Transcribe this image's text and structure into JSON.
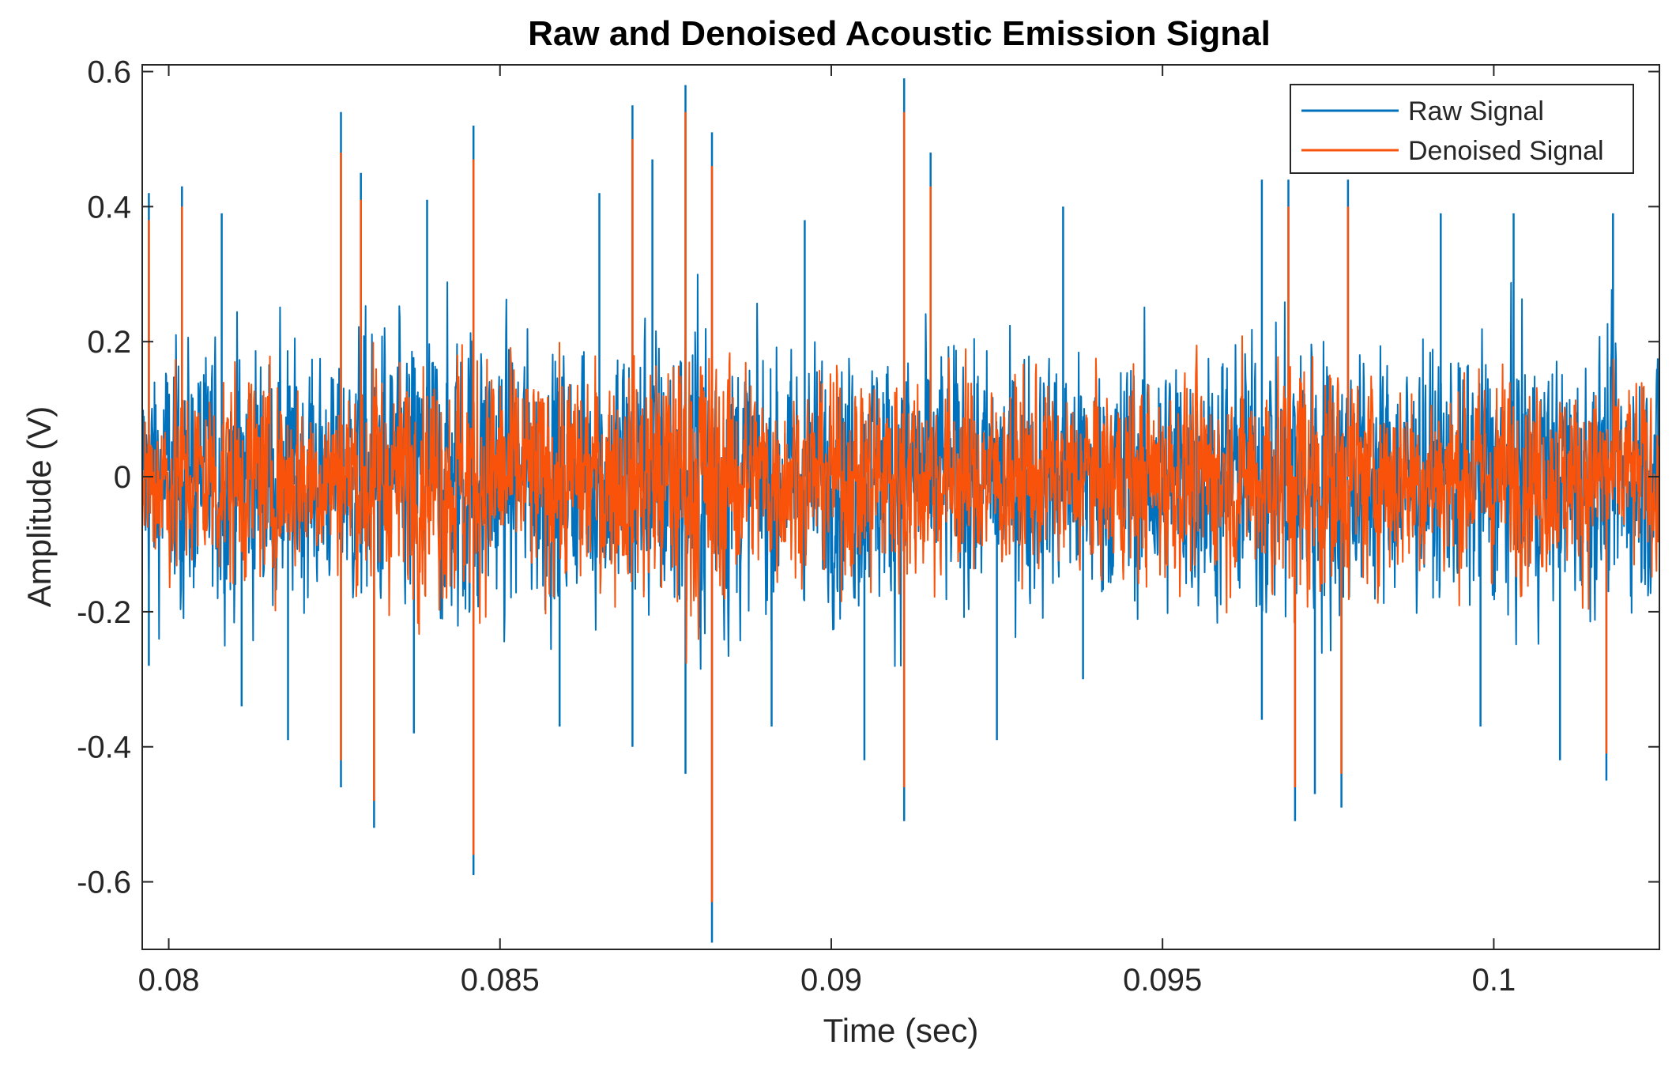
{
  "chart_data": {
    "type": "line",
    "title": "Raw and Denoised Acoustic Emission Signal",
    "xlabel": "Time (sec)",
    "ylabel": "Amplitude (V)",
    "xlim": [
      0.0796,
      0.1025
    ],
    "ylim": [
      -0.7,
      0.61
    ],
    "xticks": [
      0.08,
      0.085,
      0.09,
      0.095,
      0.1
    ],
    "xtick_labels": [
      "0.08",
      "0.085",
      "0.09",
      "0.095",
      "0.1"
    ],
    "yticks": [
      0.6,
      0.4,
      0.2,
      0,
      -0.2,
      -0.4,
      -0.6
    ],
    "ytick_labels": [
      "0.6",
      "0.4",
      "0.2",
      "0",
      "-0.2",
      "-0.4",
      "-0.6"
    ],
    "grid": false,
    "legend_position": "top-right",
    "series": [
      {
        "name": "Raw Signal",
        "color": "#0072BD",
        "envelope": {
          "x": [
            0.0796,
            0.08,
            0.0805,
            0.081,
            0.0815,
            0.082,
            0.0825,
            0.083,
            0.0835,
            0.084,
            0.0845,
            0.085,
            0.0855,
            0.086,
            0.0865,
            0.087,
            0.0875,
            0.088,
            0.0885,
            0.089,
            0.0895,
            0.09,
            0.0905,
            0.091,
            0.0915,
            0.092,
            0.0925,
            0.093,
            0.0935,
            0.094,
            0.0945,
            0.095,
            0.0955,
            0.096,
            0.0965,
            0.097,
            0.0975,
            0.098,
            0.0985,
            0.099,
            0.0995,
            0.1,
            0.1005,
            0.101,
            0.1015,
            0.102,
            0.1025
          ],
          "max": [
            0.22,
            0.28,
            0.27,
            0.3,
            0.28,
            0.26,
            0.23,
            0.32,
            0.3,
            0.31,
            0.35,
            0.3,
            0.29,
            0.28,
            0.29,
            0.32,
            0.33,
            0.38,
            0.31,
            0.27,
            0.25,
            0.27,
            0.28,
            0.3,
            0.28,
            0.27,
            0.26,
            0.27,
            0.25,
            0.26,
            0.27,
            0.28,
            0.27,
            0.27,
            0.29,
            0.36,
            0.31,
            0.28,
            0.27,
            0.26,
            0.27,
            0.28,
            0.27,
            0.26,
            0.27,
            0.26,
            0.25
          ]
        },
        "peaks": [
          {
            "x": 0.0797,
            "y": 0.42
          },
          {
            "x": 0.0802,
            "y": 0.43
          },
          {
            "x": 0.0808,
            "y": 0.39
          },
          {
            "x": 0.0826,
            "y": 0.54
          },
          {
            "x": 0.0829,
            "y": 0.45
          },
          {
            "x": 0.0839,
            "y": 0.41
          },
          {
            "x": 0.0846,
            "y": 0.52
          },
          {
            "x": 0.0865,
            "y": 0.42
          },
          {
            "x": 0.087,
            "y": 0.55
          },
          {
            "x": 0.0873,
            "y": 0.47
          },
          {
            "x": 0.0878,
            "y": 0.58
          },
          {
            "x": 0.0882,
            "y": 0.51
          },
          {
            "x": 0.0896,
            "y": 0.38
          },
          {
            "x": 0.0911,
            "y": 0.59
          },
          {
            "x": 0.0915,
            "y": 0.48
          },
          {
            "x": 0.0935,
            "y": 0.4
          },
          {
            "x": 0.0965,
            "y": 0.44
          },
          {
            "x": 0.0969,
            "y": 0.44
          },
          {
            "x": 0.0978,
            "y": 0.44
          },
          {
            "x": 0.0992,
            "y": 0.39
          },
          {
            "x": 0.1003,
            "y": 0.39
          },
          {
            "x": 0.1018,
            "y": 0.39
          },
          {
            "x": 0.0797,
            "y": -0.28
          },
          {
            "x": 0.0811,
            "y": -0.34
          },
          {
            "x": 0.0818,
            "y": -0.39
          },
          {
            "x": 0.0826,
            "y": -0.46
          },
          {
            "x": 0.0831,
            "y": -0.52
          },
          {
            "x": 0.0837,
            "y": -0.38
          },
          {
            "x": 0.0846,
            "y": -0.59
          },
          {
            "x": 0.0859,
            "y": -0.37
          },
          {
            "x": 0.087,
            "y": -0.4
          },
          {
            "x": 0.0878,
            "y": -0.44
          },
          {
            "x": 0.0882,
            "y": -0.69
          },
          {
            "x": 0.0891,
            "y": -0.37
          },
          {
            "x": 0.0905,
            "y": -0.42
          },
          {
            "x": 0.0911,
            "y": -0.51
          },
          {
            "x": 0.0925,
            "y": -0.39
          },
          {
            "x": 0.0938,
            "y": -0.3
          },
          {
            "x": 0.0965,
            "y": -0.36
          },
          {
            "x": 0.097,
            "y": -0.51
          },
          {
            "x": 0.0973,
            "y": -0.47
          },
          {
            "x": 0.0977,
            "y": -0.49
          },
          {
            "x": 0.0998,
            "y": -0.37
          },
          {
            "x": 0.101,
            "y": -0.42
          },
          {
            "x": 0.1017,
            "y": -0.45
          }
        ]
      },
      {
        "name": "Denoised Signal",
        "color": "#F9530B",
        "envelope": {
          "x": [
            0.0796,
            0.08,
            0.0805,
            0.081,
            0.0815,
            0.082,
            0.0825,
            0.083,
            0.0835,
            0.084,
            0.0845,
            0.085,
            0.0855,
            0.086,
            0.0865,
            0.087,
            0.0875,
            0.088,
            0.0885,
            0.089,
            0.0895,
            0.09,
            0.0905,
            0.091,
            0.0915,
            0.092,
            0.0925,
            0.093,
            0.0935,
            0.094,
            0.0945,
            0.095,
            0.0955,
            0.096,
            0.0965,
            0.097,
            0.0975,
            0.098,
            0.0985,
            0.099,
            0.0995,
            0.1,
            0.1005,
            0.101,
            0.1015,
            0.102,
            0.1025
          ],
          "max": [
            0.18,
            0.22,
            0.21,
            0.23,
            0.21,
            0.2,
            0.18,
            0.26,
            0.24,
            0.25,
            0.29,
            0.24,
            0.23,
            0.22,
            0.23,
            0.26,
            0.27,
            0.31,
            0.25,
            0.21,
            0.19,
            0.21,
            0.22,
            0.24,
            0.22,
            0.21,
            0.2,
            0.21,
            0.19,
            0.2,
            0.21,
            0.22,
            0.21,
            0.21,
            0.23,
            0.3,
            0.25,
            0.22,
            0.21,
            0.2,
            0.21,
            0.22,
            0.21,
            0.2,
            0.21,
            0.2,
            0.19
          ]
        },
        "peaks": [
          {
            "x": 0.0797,
            "y": 0.38
          },
          {
            "x": 0.0802,
            "y": 0.4
          },
          {
            "x": 0.0826,
            "y": 0.48
          },
          {
            "x": 0.0829,
            "y": 0.41
          },
          {
            "x": 0.0846,
            "y": 0.47
          },
          {
            "x": 0.087,
            "y": 0.5
          },
          {
            "x": 0.0878,
            "y": 0.54
          },
          {
            "x": 0.0882,
            "y": 0.46
          },
          {
            "x": 0.0911,
            "y": 0.54
          },
          {
            "x": 0.0915,
            "y": 0.43
          },
          {
            "x": 0.0969,
            "y": 0.4
          },
          {
            "x": 0.0978,
            "y": 0.4
          },
          {
            "x": 0.0826,
            "y": -0.42
          },
          {
            "x": 0.0831,
            "y": -0.48
          },
          {
            "x": 0.0846,
            "y": -0.56
          },
          {
            "x": 0.0882,
            "y": -0.63
          },
          {
            "x": 0.0911,
            "y": -0.46
          },
          {
            "x": 0.097,
            "y": -0.46
          },
          {
            "x": 0.0977,
            "y": -0.44
          },
          {
            "x": 0.1017,
            "y": -0.41
          }
        ]
      }
    ]
  }
}
